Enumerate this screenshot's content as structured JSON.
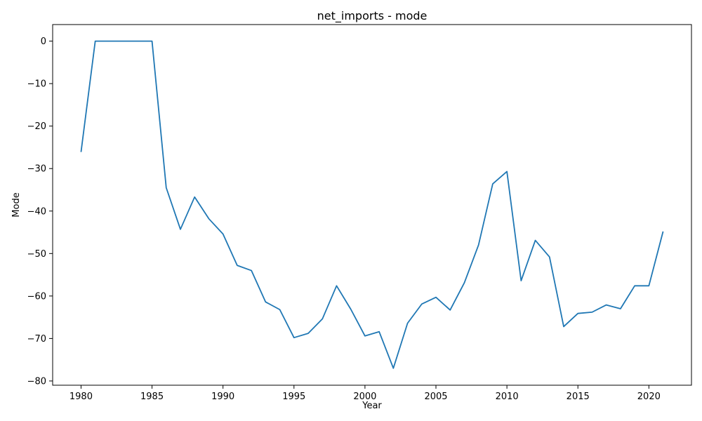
{
  "chart_data": {
    "type": "line",
    "title": "net_imports - mode",
    "xlabel": "Year",
    "ylabel": "Mode",
    "xlim": [
      1978,
      2023
    ],
    "ylim": [
      -81,
      3.9
    ],
    "xticks": [
      1980,
      1985,
      1990,
      1995,
      2000,
      2005,
      2010,
      2015,
      2020
    ],
    "yticks": [
      0,
      -10,
      -20,
      -30,
      -40,
      -50,
      -60,
      -70,
      -80
    ],
    "ytick_labels": [
      "0",
      "−10",
      "−20",
      "−30",
      "−40",
      "−50",
      "−60",
      "−70",
      "−80"
    ],
    "grid": false,
    "color": "#1f77b4",
    "x": [
      1980,
      1981,
      1982,
      1983,
      1984,
      1985,
      1986,
      1987,
      1988,
      1989,
      1990,
      1991,
      1992,
      1993,
      1994,
      1995,
      1996,
      1997,
      1998,
      1999,
      2000,
      2001,
      2002,
      2003,
      2004,
      2005,
      2006,
      2007,
      2008,
      2009,
      2010,
      2011,
      2012,
      2013,
      2014,
      2015,
      2016,
      2017,
      2018,
      2019,
      2020,
      2021
    ],
    "values": [
      -26.1,
      0,
      0,
      0,
      0,
      0,
      -34.5,
      -44.3,
      -36.7,
      -41.8,
      -45.4,
      -52.8,
      -54.0,
      -61.4,
      -63.2,
      -69.8,
      -68.8,
      -65.4,
      -57.6,
      -63.1,
      -69.4,
      -68.4,
      -77.0,
      -66.4,
      -61.9,
      -60.3,
      -63.3,
      -56.9,
      -48.0,
      -33.6,
      -30.7,
      -56.4,
      -46.9,
      -50.8,
      -67.2,
      -64.1,
      -63.8,
      -62.1,
      -63.0,
      -57.6,
      -57.6,
      -44.8
    ]
  }
}
